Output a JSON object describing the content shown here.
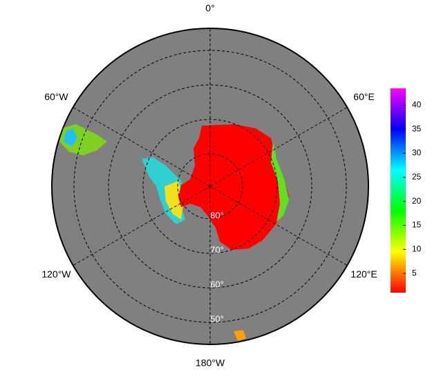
{
  "map": {
    "lon_labels": [
      "0°",
      "60°E",
      "120°E",
      "180°W",
      "120°W",
      "60°W"
    ],
    "lat_labels": [
      "80°",
      "70°",
      "60°",
      "50°"
    ]
  },
  "colorbar": {
    "lim": [
      1,
      43.5
    ],
    "ticks": [
      5,
      10,
      15,
      20,
      25,
      30,
      35,
      40
    ],
    "colors": [
      "#ff0000",
      "#ffff00",
      "#00ff00",
      "#00ffff",
      "#0000ff",
      "#ff00ff"
    ]
  }
}
